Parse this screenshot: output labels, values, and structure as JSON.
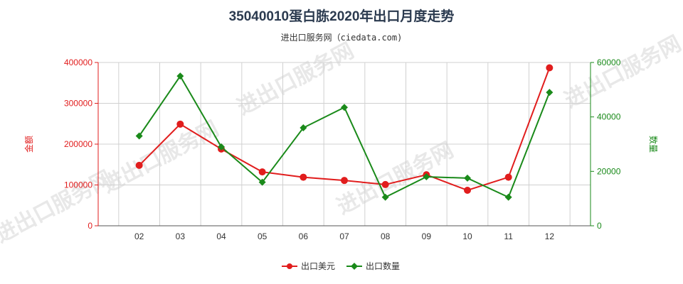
{
  "title": "35040010蛋白胨2020年出口月度走势",
  "subtitle": "进出口服务网（ciedata.com)",
  "watermark_text": "进出口服务网",
  "chart_data": {
    "type": "line",
    "categories": [
      "02",
      "03",
      "04",
      "05",
      "06",
      "07",
      "08",
      "09",
      "10",
      "11",
      "12"
    ],
    "left_axis": {
      "label": "金额",
      "range": [
        0,
        400000
      ],
      "ticks": [
        "0",
        "100000",
        "200000",
        "300000",
        "400000"
      ],
      "color": "#e11d1d"
    },
    "right_axis": {
      "label": "数量",
      "range": [
        0,
        60000
      ],
      "ticks": [
        "0",
        "20000",
        "40000",
        "60000"
      ],
      "color": "#1a8a1a"
    },
    "series": [
      {
        "name": "出口美元",
        "axis": "left",
        "color": "#e11d1d",
        "marker": "circle",
        "values": [
          148000,
          249000,
          188000,
          132000,
          119000,
          111000,
          101000,
          125000,
          87000,
          119000,
          387000
        ]
      },
      {
        "name": "出口数量",
        "axis": "right",
        "color": "#1a8a1a",
        "marker": "diamond",
        "values": [
          33000,
          55000,
          29000,
          16000,
          36000,
          43500,
          10500,
          18000,
          17500,
          10500,
          49000
        ]
      }
    ],
    "grid": true,
    "legend_position": "bottom-center"
  }
}
